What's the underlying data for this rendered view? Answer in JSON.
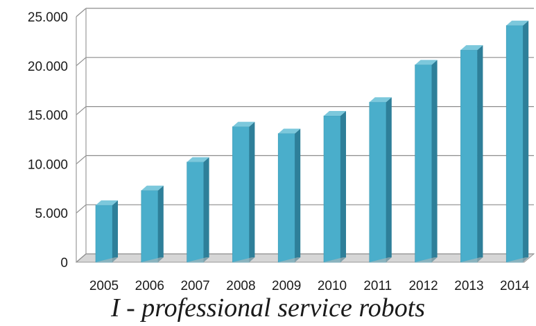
{
  "chart_data": {
    "type": "bar",
    "categories": [
      "2005",
      "2006",
      "2007",
      "2008",
      "2009",
      "2010",
      "2011",
      "2012",
      "2013",
      "2014"
    ],
    "values": [
      5800,
      7300,
      10200,
      13800,
      13100,
      14900,
      16300,
      20100,
      21600,
      24100
    ],
    "ylim": [
      0,
      25000
    ],
    "yticks": [
      0,
      5000,
      10000,
      15000,
      20000,
      25000
    ],
    "ytick_labels": [
      "0",
      "5.000",
      "10.000",
      "15.000",
      "20.000",
      "25.000"
    ],
    "grid": true,
    "caption": "I - professional service robots",
    "colors": {
      "bar_front": "#4aaecb",
      "bar_side": "#2e7f99",
      "bar_top": "#7cc8dc",
      "grid": "#8c8c8c",
      "axis_frame": "#9a9a9a",
      "floor": "#d6d6d6"
    }
  }
}
